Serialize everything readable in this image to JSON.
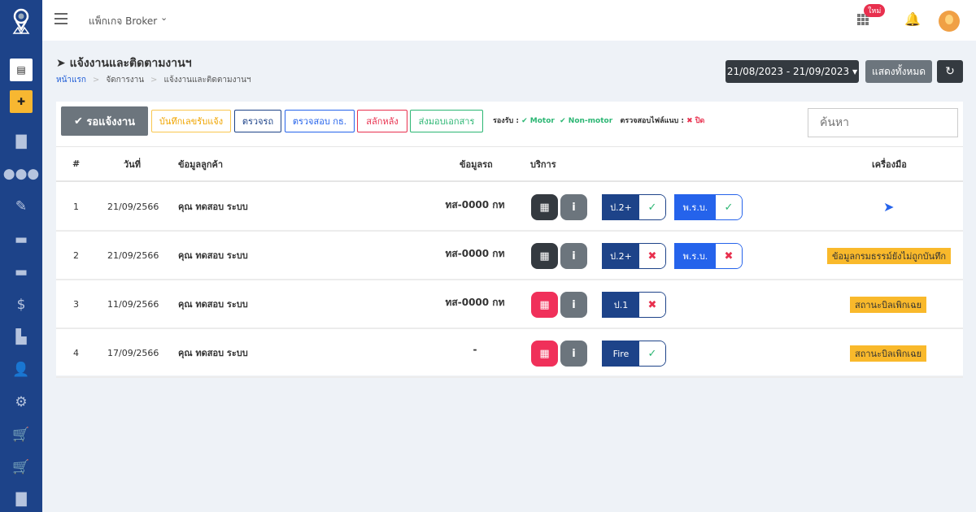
{
  "topbar": {
    "package": "แพ็กเกจ Broker",
    "new_badge": "ใหม่"
  },
  "page": {
    "title": "แจ้งงานและติดตามงานฯ",
    "breadcrumb": [
      "หน้าแรก",
      "จัดการงาน",
      "แจ้งงานและติดตามงานฯ"
    ]
  },
  "actions": {
    "date_range": "21/08/2023 - 21/09/2023",
    "show_all": "แสดงทั้งหมด"
  },
  "filters": {
    "active": "รอแจ้งงาน",
    "tabs": [
      "บันทึกเลขรับแจ้ง",
      "ตรวจรถ",
      "ตรวจสอบ กธ.",
      "สลักหลัง",
      "ส่งมอบเอกสาร"
    ],
    "support_label": "รองรับ :",
    "motor": "Motor",
    "non_motor": "Non-motor",
    "attach_label": "ตรวจสอบไฟล์แนบ :",
    "attach_value": "ปิด"
  },
  "search": {
    "placeholder": "ค้นหา"
  },
  "table": {
    "headers": [
      "#",
      "วันที่",
      "ข้อมูลลูกค้า",
      "ข้อมูลรถ",
      "บริการ",
      "เครื่องมือ"
    ],
    "rows": [
      {
        "no": "1",
        "date": "21/09/2566",
        "customer": "คุณ ทดสอบ ระบบ",
        "car": "ทส-0000 กท",
        "calc": "dark",
        "tags": [
          {
            "label": "ป.2+",
            "ok": true,
            "color": "#1d4389"
          },
          {
            "label": "พ.ร.บ.",
            "ok": true,
            "color": "#2563eb"
          }
        ],
        "tool": "send-icon"
      },
      {
        "no": "2",
        "date": "21/09/2566",
        "customer": "คุณ ทดสอบ ระบบ",
        "car": "ทส-0000 กท",
        "calc": "dark",
        "tags": [
          {
            "label": "ป.2+",
            "ok": false,
            "color": "#1d4389"
          },
          {
            "label": "พ.ร.บ.",
            "ok": false,
            "color": "#2563eb"
          }
        ],
        "status": "ข้อมูลกรมธรรม์ยังไม่ถูกบันทึก"
      },
      {
        "no": "3",
        "date": "11/09/2566",
        "customer": "คุณ ทดสอบ ระบบ",
        "car": "ทส-0000 กท",
        "calc": "red",
        "tags": [
          {
            "label": "ป.1",
            "ok": false,
            "color": "#1d4389"
          }
        ],
        "status": "สถานะบิลเพิกเฉย"
      },
      {
        "no": "4",
        "date": "17/09/2566",
        "customer": "คุณ ทดสอบ ระบบ",
        "car": "-",
        "calc": "red",
        "tags": [
          {
            "label": "Fire",
            "ok": true,
            "color": "#1d4389"
          }
        ],
        "status": "สถานะบิลเพิกเฉย"
      }
    ]
  }
}
